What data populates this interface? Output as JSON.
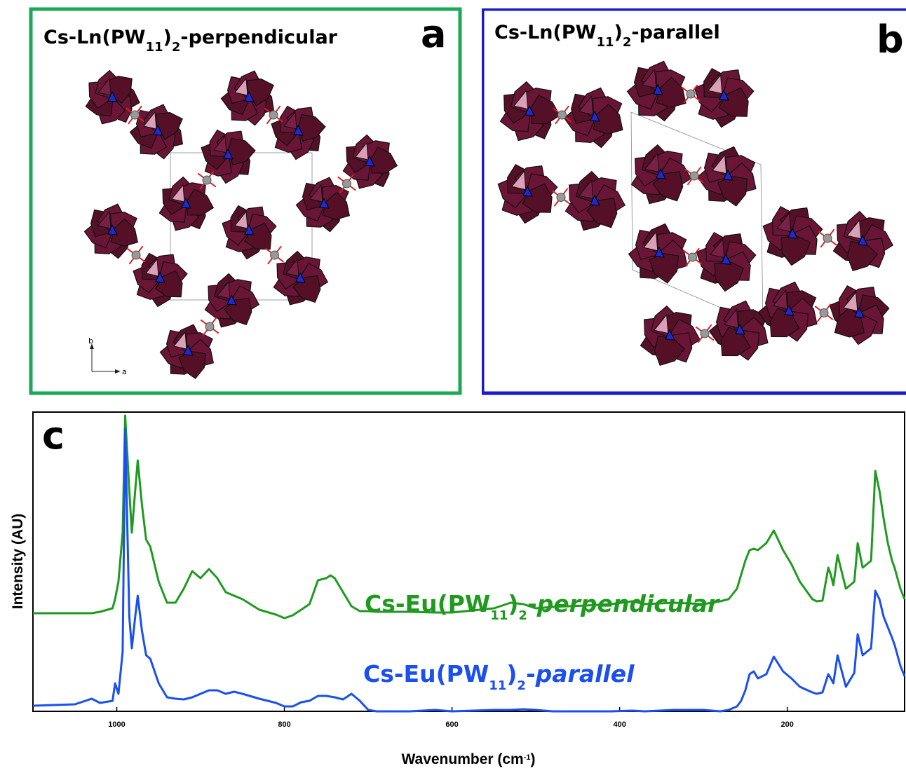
{
  "panels": [
    {
      "letter": "a",
      "title": [
        "Cs-Ln(PW",
        "11",
        ")",
        "2",
        "-perpendicular"
      ],
      "axis_labels": [
        "b",
        "a"
      ],
      "color": "#1aaa55"
    },
    {
      "letter": "b",
      "title": [
        "Cs-Ln(PW",
        "11",
        ")",
        "2",
        "-parallel"
      ],
      "color": "#1a1acc"
    }
  ],
  "chart_data": {
    "type": "line",
    "letter": "c",
    "x_label": [
      "Wavenumber (cm",
      "-1",
      ")"
    ],
    "y_label": "Intensity (AU)",
    "xlim": [
      1100,
      60
    ],
    "xticks": [
      1000,
      800,
      600,
      400,
      200
    ],
    "ylim": [
      0,
      427
    ],
    "x": [
      1100,
      1050,
      1030,
      1020,
      1005,
      1002,
      998,
      993,
      990,
      985,
      982,
      978,
      975,
      970,
      965,
      960,
      950,
      940,
      930,
      920,
      910,
      900,
      890,
      880,
      870,
      860,
      850,
      830,
      810,
      800,
      790,
      780,
      770,
      760,
      750,
      745,
      740,
      730,
      720,
      710,
      700,
      690,
      650,
      620,
      600,
      550,
      530,
      515,
      500,
      480,
      440,
      410,
      385,
      370,
      335,
      300,
      280,
      270,
      260,
      255,
      250,
      245,
      240,
      235,
      225,
      216,
      205,
      195,
      185,
      170,
      165,
      158,
      151,
      148,
      145,
      140,
      130,
      120,
      116,
      110,
      100,
      95,
      90,
      85,
      80,
      75,
      72,
      65,
      60
    ],
    "series": [
      {
        "name": [
          "Cs-Eu(PW",
          "11",
          ")",
          "2",
          "-",
          "perpendicular"
        ],
        "color": "#1f9a1f",
        "values": [
          140,
          140,
          140,
          142,
          147,
          160,
          185,
          255,
          422,
          315,
          255,
          315,
          358,
          295,
          245,
          235,
          185,
          155,
          155,
          175,
          200,
          190,
          203,
          190,
          170,
          165,
          160,
          145,
          138,
          133,
          137,
          145,
          153,
          187,
          190,
          194,
          190,
          170,
          150,
          143,
          143,
          142,
          142,
          141,
          141,
          147,
          155,
          153,
          147,
          149,
          151,
          153,
          157,
          153,
          155,
          153,
          157,
          160,
          175,
          195,
          215,
          230,
          232,
          230,
          240,
          258,
          230,
          210,
          185,
          160,
          157,
          158,
          205,
          195,
          180,
          223,
          175,
          185,
          240,
          205,
          215,
          343,
          315,
          275,
          240,
          215,
          205,
          175,
          160
        ]
      },
      {
        "name": [
          "Cs-Eu(PW",
          "11",
          ")",
          "2",
          "-",
          "parallel"
        ],
        "color": "#1a4ff0",
        "values": [
          8,
          10,
          18,
          12,
          15,
          40,
          25,
          85,
          403,
          135,
          90,
          135,
          165,
          115,
          80,
          75,
          40,
          20,
          18,
          17,
          20,
          25,
          30,
          30,
          25,
          28,
          25,
          18,
          12,
          7,
          7,
          13,
          15,
          22,
          22,
          21,
          20,
          17,
          25,
          15,
          2,
          0,
          0,
          2,
          0,
          2,
          2,
          3,
          2,
          0,
          0,
          0,
          1,
          0,
          2,
          2,
          0,
          2,
          7,
          15,
          30,
          53,
          57,
          47,
          53,
          78,
          57,
          47,
          35,
          27,
          25,
          27,
          53,
          47,
          40,
          80,
          35,
          55,
          110,
          80,
          90,
          172,
          160,
          135,
          120,
          105,
          95,
          65,
          50
        ]
      }
    ]
  }
}
